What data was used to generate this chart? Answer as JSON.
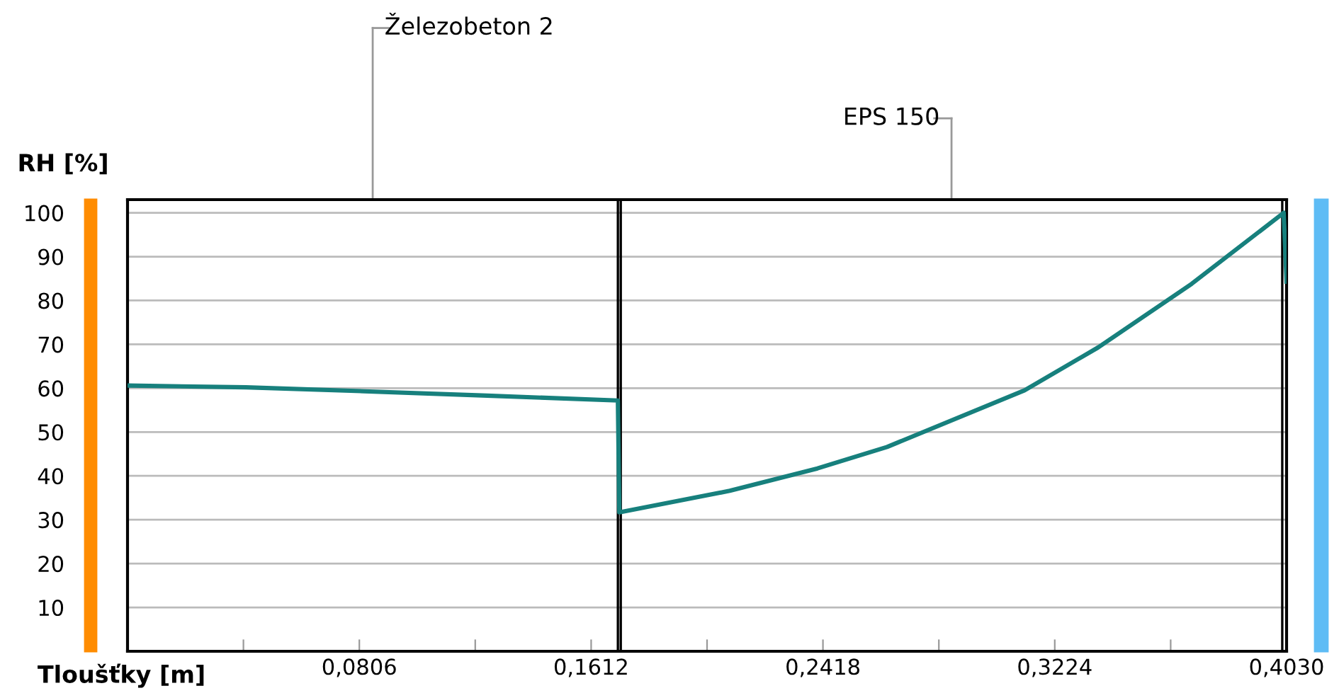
{
  "chart_data": {
    "type": "line",
    "xlabel": "Tloušťky [m]",
    "ylabel": "RH [%]",
    "series": [
      {
        "color": "#17807d",
        "x": [
          0,
          0.0412,
          0.0823,
          0.125,
          0.1705,
          0.171,
          0.2094,
          0.2399,
          0.2641,
          0.3119,
          0.3375,
          0.37,
          0.402,
          0.403
        ],
        "values": [
          60.6,
          60.2,
          59.3,
          58.3,
          57.2,
          31.7,
          36.6,
          41.7,
          46.6,
          59.5,
          69.3,
          83.8,
          100,
          84.3
        ]
      }
    ],
    "xlim": [
      0,
      0.403
    ],
    "ylim": [
      0,
      103
    ],
    "xticks": [
      {
        "value": 0.0403,
        "label": null
      },
      {
        "value": 0.0806,
        "label": "0,0806"
      },
      {
        "value": 0.1209,
        "label": null
      },
      {
        "value": 0.1612,
        "label": "0,1612"
      },
      {
        "value": 0.2015,
        "label": null
      },
      {
        "value": 0.2418,
        "label": "0,2418"
      },
      {
        "value": 0.2821,
        "label": null
      },
      {
        "value": 0.3224,
        "label": "0,3224"
      },
      {
        "value": 0.3627,
        "label": null
      },
      {
        "value": 0.403,
        "label": "0,4030"
      }
    ],
    "yticks": [
      10,
      20,
      30,
      40,
      50,
      60,
      70,
      80,
      90,
      100
    ],
    "grid": "y",
    "legend": false,
    "marker": "none",
    "line_style": "solid",
    "ref_lines": [
      {
        "axis": "x",
        "value": 0.1705,
        "color": "#000000"
      },
      {
        "axis": "x",
        "value": 0.1715,
        "color": "#000000"
      },
      {
        "axis": "x",
        "value": 0.4015,
        "color": "#000000"
      }
    ],
    "annotations": [
      "Železobeton 2",
      "EPS 150"
    ]
  }
}
